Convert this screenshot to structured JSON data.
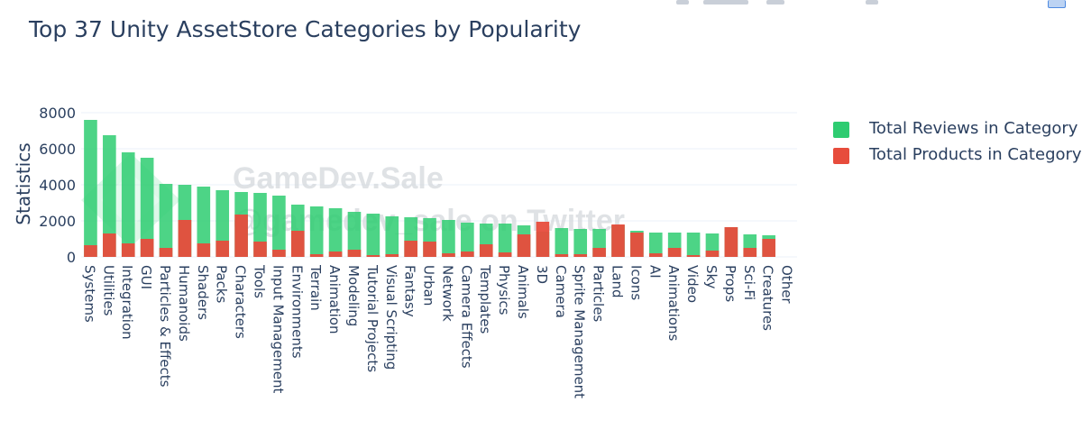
{
  "chart_data": {
    "type": "bar",
    "barmode": "overlay",
    "title": "Top 37 Unity AssetStore Categories by Popularity",
    "xlabel": "",
    "ylabel": "Statistics",
    "ylim": [
      0,
      8600
    ],
    "yticks": [
      0,
      2000,
      4000,
      6000,
      8000
    ],
    "ytick_labels": [
      "0",
      "2000",
      "4000",
      "6000",
      "8000"
    ],
    "grid": true,
    "legend_position": "top-right",
    "categories": [
      "Systems",
      "Utilities",
      "Integration",
      "GUI",
      "Particles & Effects",
      "Humanoids",
      "Shaders",
      "Packs",
      "Characters",
      "Tools",
      "Input Management",
      "Environments",
      "Terrain",
      "Animation",
      "Modeling",
      "Tutorial Projects",
      "Visual Scripting",
      "Fantasy",
      "Urban",
      "Network",
      "Camera Effects",
      "Templates",
      "Physics",
      "Animals",
      "3D",
      "Camera",
      "Sprite Management",
      "Particles",
      "Land",
      "Icons",
      "AI",
      "Animations",
      "Video",
      "Sky",
      "Props",
      "Sci-Fi",
      "Creatures",
      "Other"
    ],
    "series": [
      {
        "name": "Total Reviews in Category",
        "color": "#2ecc71",
        "values": [
          7600,
          6750,
          5800,
          5500,
          4050,
          4000,
          3900,
          3700,
          3600,
          3550,
          3400,
          2900,
          2800,
          2700,
          2500,
          2400,
          2250,
          2200,
          2150,
          2050,
          1900,
          1850,
          1850,
          1750,
          1400,
          1600,
          1550,
          1550,
          1750,
          1450,
          1350,
          1350,
          1350,
          1300,
          1650,
          1250,
          1200,
          0
        ]
      },
      {
        "name": "Total Products in Category",
        "color": "#e74c3c",
        "values": [
          650,
          1300,
          750,
          1000,
          500,
          2050,
          750,
          900,
          2350,
          850,
          400,
          1450,
          150,
          300,
          400,
          100,
          150,
          900,
          850,
          200,
          300,
          700,
          250,
          1250,
          1950,
          150,
          150,
          500,
          1800,
          1350,
          200,
          500,
          100,
          350,
          1650,
          500,
          1000,
          0
        ]
      }
    ]
  },
  "watermark": {
    "line1": "GameDev.Sale",
    "line2": "@gamedev_sale on Twitter"
  }
}
